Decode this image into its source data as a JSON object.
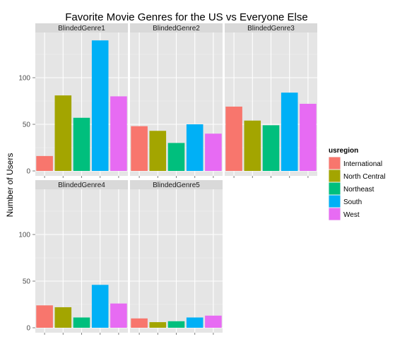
{
  "chart_data": {
    "type": "bar",
    "title": "Favorite Movie Genres for the US vs Everyone Else",
    "xlabel": "",
    "ylabel": "Number of Users",
    "ylim": [
      0,
      150
    ],
    "yticks": [
      0,
      50,
      100
    ],
    "grid": true,
    "legend": {
      "title": "usregion",
      "placement": "right"
    },
    "categories": [
      "International",
      "North Central",
      "Northeast",
      "South",
      "West"
    ],
    "colors": [
      "#F8766D",
      "#A3A500",
      "#00BF7D",
      "#00B0F6",
      "#E76BF3"
    ],
    "facets": [
      {
        "name": "BlindedGenre1",
        "values": [
          16,
          81,
          57,
          140,
          80
        ]
      },
      {
        "name": "BlindedGenre2",
        "values": [
          48,
          43,
          30,
          50,
          40
        ]
      },
      {
        "name": "BlindedGenre3",
        "values": [
          69,
          54,
          49,
          84,
          72
        ]
      },
      {
        "name": "BlindedGenre4",
        "values": [
          24,
          22,
          11,
          46,
          26
        ]
      },
      {
        "name": "BlindedGenre5",
        "values": [
          10,
          6,
          7,
          11,
          13
        ]
      }
    ]
  }
}
